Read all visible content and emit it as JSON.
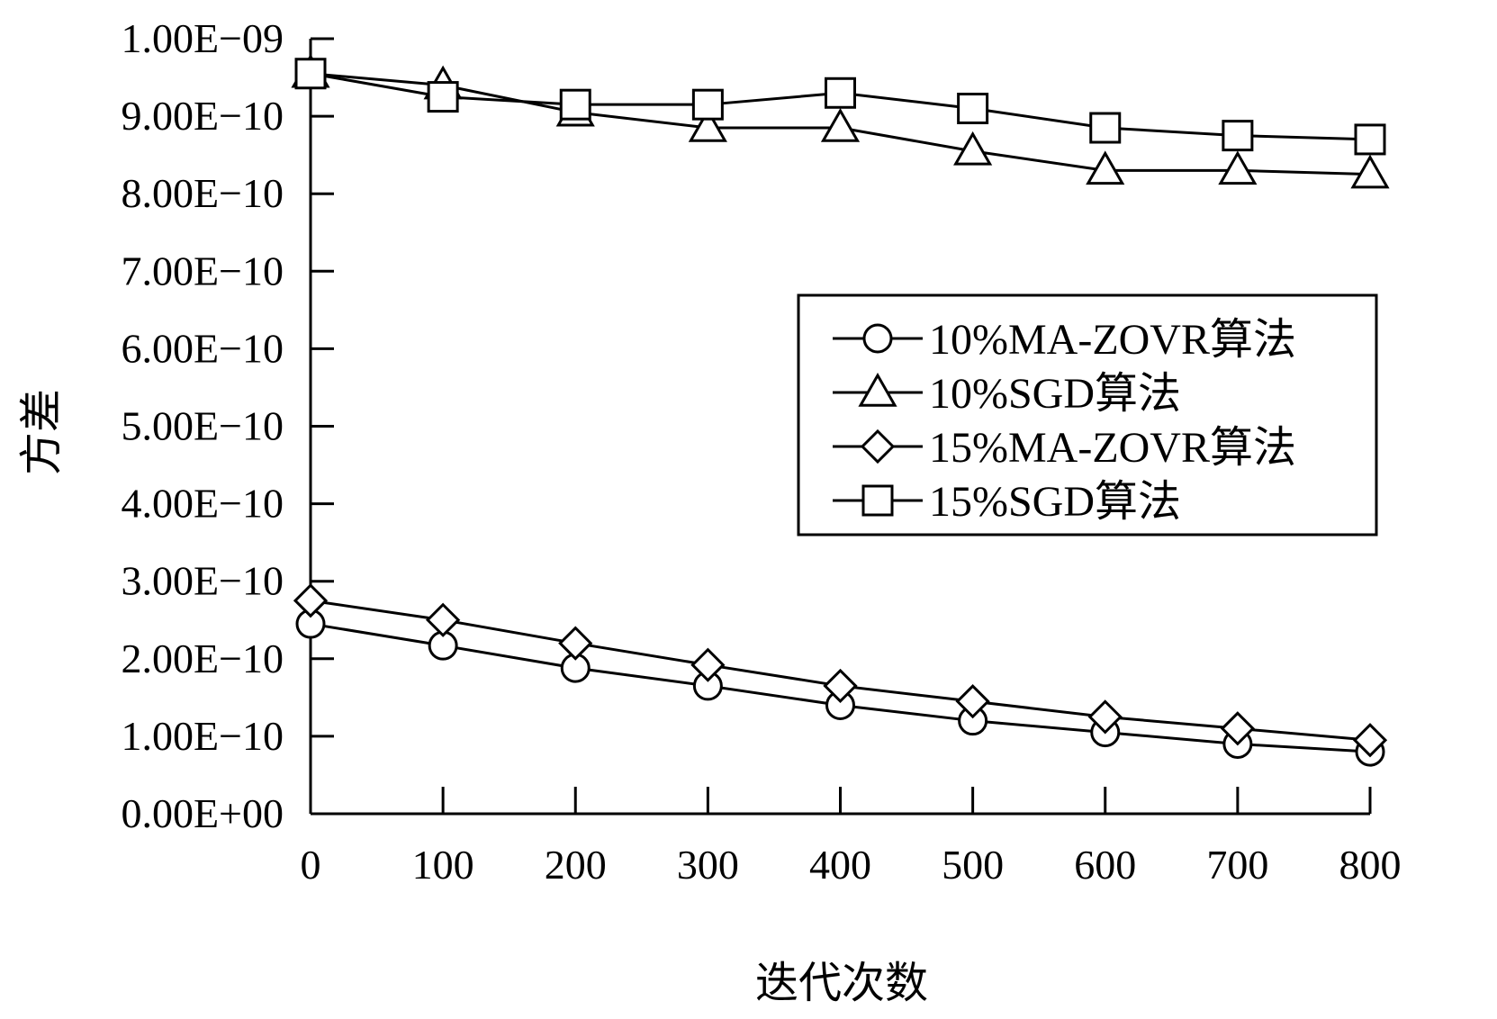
{
  "chart_data": {
    "type": "line",
    "title": "",
    "xlabel": "迭代次数",
    "ylabel": "方差",
    "x": [
      0,
      100,
      200,
      300,
      400,
      500,
      600,
      700,
      800
    ],
    "x_tick_labels": [
      "0",
      "100",
      "200",
      "300",
      "400",
      "500",
      "600",
      "700",
      "800"
    ],
    "ylim": [
      0,
      1e-09
    ],
    "y_ticks": [
      0,
      1e-10,
      2e-10,
      3e-10,
      4e-10,
      5e-10,
      6e-10,
      7e-10,
      8e-10,
      9e-10,
      1e-09
    ],
    "y_tick_labels": [
      "0.00E+00",
      "1.00E−10",
      "2.00E−10",
      "3.00E−10",
      "4.00E−10",
      "5.00E−10",
      "6.00E−10",
      "7.00E−10",
      "8.00E−10",
      "9.00E−10",
      "1.00E−09"
    ],
    "legend_position": "right",
    "grid": false,
    "series": [
      {
        "name": "10%MA-ZOVR算法",
        "marker": "circle",
        "values": [
          2.45e-10,
          2.17e-10,
          1.88e-10,
          1.65e-10,
          1.4e-10,
          1.2e-10,
          1.05e-10,
          9e-11,
          8e-11
        ]
      },
      {
        "name": "10%SGD算法",
        "marker": "triangle",
        "values": [
          9.55e-10,
          9.4e-10,
          9.05e-10,
          8.85e-10,
          8.85e-10,
          8.55e-10,
          8.3e-10,
          8.3e-10,
          8.25e-10
        ]
      },
      {
        "name": "15%MA-ZOVR算法",
        "marker": "diamond",
        "values": [
          2.75e-10,
          2.5e-10,
          2.2e-10,
          1.92e-10,
          1.65e-10,
          1.45e-10,
          1.25e-10,
          1.1e-10,
          9.5e-11
        ]
      },
      {
        "name": "15%SGD算法",
        "marker": "square",
        "values": [
          9.55e-10,
          9.25e-10,
          9.15e-10,
          9.15e-10,
          9.3e-10,
          9.1e-10,
          8.85e-10,
          8.75e-10,
          8.7e-10
        ]
      }
    ],
    "colors": {
      "line": "#000000",
      "marker_fill": "#ffffff",
      "background": "#ffffff"
    }
  }
}
